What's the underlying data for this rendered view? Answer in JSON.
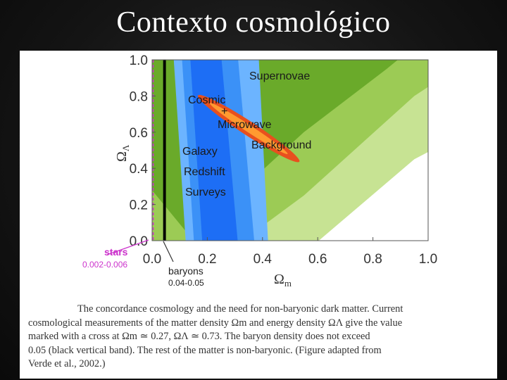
{
  "slide": {
    "title": "Contexto cosmológico"
  },
  "chart_data": {
    "type": "contour",
    "xlabel": "Ω",
    "xlabel_sub": "m",
    "ylabel": "Ω",
    "ylabel_sub": "Λ",
    "xlim": [
      0,
      1
    ],
    "ylim": [
      0,
      1
    ],
    "x_ticks": [
      "0.0",
      "0.2",
      "0.4",
      "0.6",
      "0.8",
      "1.0"
    ],
    "y_ticks": [
      "0.0",
      "0.2",
      "0.4",
      "0.6",
      "0.8",
      "1.0"
    ],
    "regions": [
      {
        "label": "Supernovae",
        "color": "#6aaa2a"
      },
      {
        "label_lines": [
          "Cosmic",
          "+",
          "Microwave",
          "Background"
        ],
        "color": "#e8501e"
      },
      {
        "label_lines": [
          "Galaxy",
          "Redshift",
          "Surveys"
        ],
        "color": "#1d6ef5"
      }
    ],
    "bands": [
      {
        "label": "baryons",
        "range_label": "0.04-0.05",
        "x": [
          0.04,
          0.05
        ],
        "color": "#000000"
      },
      {
        "label": "stars",
        "range_label": "0.002-0.006",
        "x": [
          0.002,
          0.006
        ],
        "color": "#cc33cc"
      }
    ],
    "best_fit": {
      "x": 0.27,
      "y": 0.73
    },
    "colors": {
      "sn_dark": "#6aaa2a",
      "sn_mid": "#9ccb55",
      "sn_light": "#c7e393",
      "lss_dark": "#1d6ef5",
      "lss_mid": "#3b91f7",
      "lss_light": "#6cb4ff",
      "cmb_outer": "#e8501e",
      "cmb_inner": "#ff9a30",
      "stars": "#cc33cc",
      "baryons": "#000000"
    }
  },
  "caption": {
    "lines": [
      "The concordance cosmology and the need for non-baryonic dark matter. Current",
      "cosmological measurements of the matter density Ωm and energy density ΩΛ give the value",
      "marked with a cross at Ωm ≃ 0.27, ΩΛ ≃ 0.73. The baryon density does not exceed",
      "0.05 (black vertical band). The rest of the matter is non-baryonic. (Figure adapted from",
      "Verde et al., 2002.)"
    ]
  }
}
